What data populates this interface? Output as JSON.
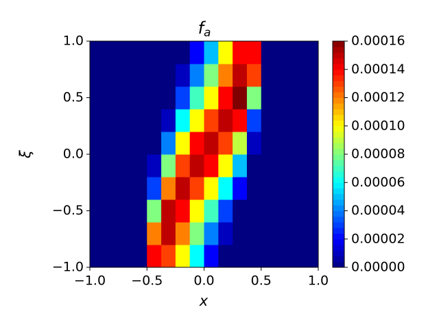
{
  "chart_data": {
    "type": "heatmap",
    "colormap": "jet",
    "title": "f",
    "title_subscript": "a",
    "xlabel": "x",
    "ylabel": "ξ",
    "x": [
      -0.9375,
      -0.8125,
      -0.6875,
      -0.5625,
      -0.4375,
      -0.3125,
      -0.1875,
      -0.0625,
      0.0625,
      0.1875,
      0.3125,
      0.4375,
      0.5625,
      0.6875,
      0.8125,
      0.9375
    ],
    "y": [
      -0.9,
      -0.7,
      -0.5,
      -0.3,
      -0.1,
      0.1,
      0.3,
      0.5,
      0.7,
      0.9
    ],
    "z": [
      [
        0,
        0,
        0,
        0,
        0.00014,
        0.00013,
        0.0001,
        6e-05,
        2e-05,
        0,
        0,
        0,
        0,
        0,
        0,
        0
      ],
      [
        0,
        0,
        0,
        0,
        0.00012,
        0.00015,
        0.00012,
        8e-05,
        4e-05,
        1e-05,
        0,
        0,
        0,
        0,
        0,
        0
      ],
      [
        0,
        0,
        0,
        0,
        8e-05,
        0.00015,
        0.00014,
        0.0001,
        7e-05,
        3e-05,
        0,
        0,
        0,
        0,
        0,
        0
      ],
      [
        0,
        0,
        0,
        0,
        3e-05,
        0.00012,
        0.00015,
        0.00013,
        0.0001,
        6e-05,
        2e-05,
        0,
        0,
        0,
        0,
        0
      ],
      [
        0,
        0,
        0,
        0,
        1e-05,
        8e-05,
        0.00013,
        0.00015,
        0.00014,
        0.0001,
        5e-05,
        0,
        0,
        0,
        0,
        0
      ],
      [
        0,
        0,
        0,
        0,
        0,
        4e-05,
        0.0001,
        0.00014,
        0.00015,
        0.00013,
        9e-05,
        1e-05,
        0,
        0,
        0,
        0
      ],
      [
        0,
        0,
        0,
        0,
        0,
        1e-05,
        6e-05,
        0.0001,
        0.00013,
        0.00015,
        0.00014,
        3e-05,
        0,
        0,
        0,
        0
      ],
      [
        0,
        0,
        0,
        0,
        0,
        0,
        3e-05,
        7e-05,
        0.0001,
        0.00014,
        0.00016,
        8e-05,
        0,
        0,
        0,
        0
      ],
      [
        0,
        0,
        0,
        0,
        0,
        0,
        1e-05,
        4e-05,
        8e-05,
        0.00012,
        0.00015,
        0.00013,
        0,
        0,
        0,
        0
      ],
      [
        0,
        0,
        0,
        0,
        0,
        0,
        0,
        2e-05,
        5e-05,
        0.0001,
        0.00014,
        0.00014,
        0,
        0,
        0,
        0
      ]
    ],
    "xlim": [
      -1,
      1
    ],
    "ylim": [
      -1,
      1
    ],
    "zlim": [
      0,
      0.00016
    ],
    "xticks": [
      {
        "value": -1,
        "label": "−1.0"
      },
      {
        "value": -0.5,
        "label": "−0.5"
      },
      {
        "value": 0,
        "label": "0.0"
      },
      0.5,
      {
        "value": 1,
        "label": "1.0"
      }
    ],
    "yticks": [
      {
        "value": -1,
        "label": "−1.0"
      },
      {
        "value": -0.5,
        "label": "−0.5"
      },
      {
        "value": 0,
        "label": "0.0"
      },
      0.5,
      {
        "value": 1,
        "label": "1.0"
      }
    ],
    "zticks": [
      {
        "value": 0,
        "label": "0.00000"
      },
      2e-05,
      4e-05,
      6e-05,
      8e-05,
      {
        "value": 0.0001,
        "label": "0.00010"
      },
      0.00012,
      0.00014,
      0.00016
    ]
  }
}
